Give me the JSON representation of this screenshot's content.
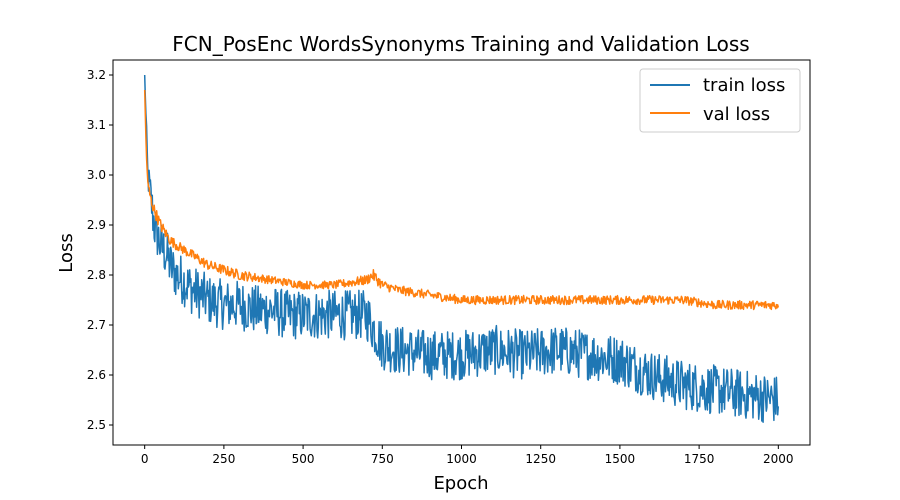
{
  "chart_data": {
    "type": "line",
    "title": "FCN_PosEnc WordsSynonyms Training and Validation Loss",
    "xlabel": "Epoch",
    "ylabel": "Loss",
    "xlim": [
      -100,
      2100
    ],
    "ylim": [
      2.46,
      3.23
    ],
    "xticks": [
      0,
      250,
      500,
      750,
      1000,
      1250,
      1500,
      1750,
      2000
    ],
    "yticks": [
      2.5,
      2.6,
      2.7,
      2.8,
      2.9,
      3.0,
      3.1,
      3.2
    ],
    "grid": false,
    "legend_position": "top-right",
    "series": [
      {
        "name": "train loss",
        "color": "#1f77b4",
        "x": [
          0,
          10,
          20,
          30,
          40,
          50,
          60,
          70,
          80,
          100,
          120,
          150,
          180,
          200,
          250,
          300,
          350,
          400,
          450,
          500,
          550,
          600,
          650,
          700,
          750,
          800,
          900,
          1000,
          1100,
          1200,
          1300,
          1400,
          1500,
          1600,
          1700,
          1800,
          1900,
          2000
        ],
        "y": [
          3.2,
          3.0,
          2.95,
          2.9,
          2.88,
          2.86,
          2.85,
          2.84,
          2.82,
          2.8,
          2.79,
          2.77,
          2.76,
          2.75,
          2.74,
          2.74,
          2.73,
          2.73,
          2.72,
          2.72,
          2.72,
          2.72,
          2.72,
          2.72,
          2.66,
          2.65,
          2.64,
          2.64,
          2.65,
          2.64,
          2.65,
          2.64,
          2.63,
          2.6,
          2.58,
          2.57,
          2.56,
          2.55
        ],
        "noise": [
          0,
          0.03,
          0.05,
          0.05,
          0.05,
          0.05,
          0.05,
          0.05,
          0.05,
          0.05,
          0.05,
          0.05,
          0.05,
          0.05,
          0.05,
          0.05,
          0.05,
          0.05,
          0.05,
          0.05,
          0.05,
          0.05,
          0.05,
          0.05,
          0.05,
          0.05,
          0.05,
          0.05,
          0.05,
          0.05,
          0.05,
          0.05,
          0.05,
          0.05,
          0.05,
          0.05,
          0.05,
          0.05
        ]
      },
      {
        "name": "val loss",
        "color": "#ff7f0e",
        "x": [
          0,
          5,
          10,
          20,
          30,
          50,
          80,
          100,
          150,
          200,
          250,
          300,
          400,
          500,
          600,
          700,
          720,
          750,
          800,
          900,
          1000,
          1100,
          1200,
          1300,
          1400,
          1500,
          1600,
          1700,
          1800,
          1900,
          2000
        ],
        "y": [
          3.17,
          3.05,
          2.98,
          2.95,
          2.93,
          2.9,
          2.87,
          2.86,
          2.84,
          2.82,
          2.81,
          2.8,
          2.79,
          2.78,
          2.78,
          2.79,
          2.8,
          2.78,
          2.77,
          2.76,
          2.75,
          2.75,
          2.75,
          2.75,
          2.75,
          2.75,
          2.75,
          2.75,
          2.74,
          2.74,
          2.74
        ],
        "noise": [
          0,
          0.01,
          0.012,
          0.012,
          0.012,
          0.012,
          0.01,
          0.01,
          0.01,
          0.01,
          0.01,
          0.01,
          0.008,
          0.008,
          0.008,
          0.01,
          0.012,
          0.01,
          0.009,
          0.009,
          0.009,
          0.009,
          0.009,
          0.009,
          0.009,
          0.009,
          0.009,
          0.009,
          0.009,
          0.009,
          0.009
        ]
      }
    ]
  }
}
